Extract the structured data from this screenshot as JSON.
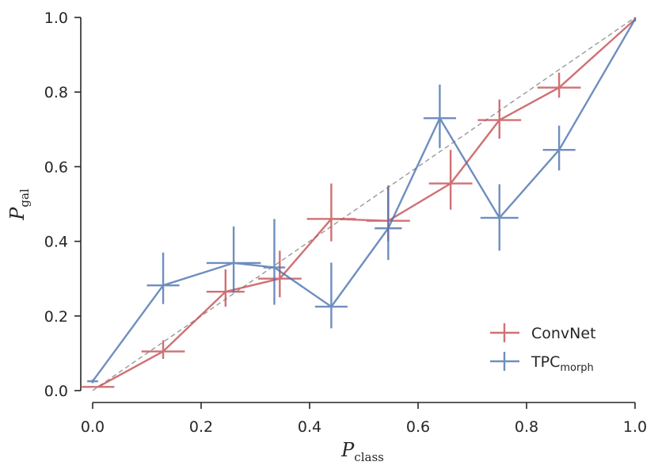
{
  "chart_data": {
    "type": "line",
    "title": "",
    "xlabel": {
      "main": "P",
      "sub": "class"
    },
    "ylabel": {
      "main": "P",
      "sub": "gal"
    },
    "xlim": [
      0.0,
      1.0
    ],
    "ylim": [
      0.0,
      1.0
    ],
    "xticks": [
      "0.0",
      "0.2",
      "0.4",
      "0.6",
      "0.8",
      "1.0"
    ],
    "yticks": [
      "0.0",
      "0.2",
      "0.4",
      "0.6",
      "0.8",
      "1.0"
    ],
    "xtick_values": [
      0.0,
      0.2,
      0.4,
      0.6,
      0.8,
      1.0
    ],
    "ytick_values": [
      0.0,
      0.2,
      0.4,
      0.6,
      0.8,
      1.0
    ],
    "grid": false,
    "legend_position": "bottom-right",
    "reference_line": {
      "from": [
        0,
        0
      ],
      "to": [
        1,
        1
      ],
      "style": "dashed",
      "color": "#999999"
    },
    "series": [
      {
        "name": "ConvNet",
        "name_sub": "",
        "color": "#c44e52",
        "points": [
          {
            "x": 0.01,
            "y": 0.01,
            "xerr": 0.03,
            "yerr_low": 0.0,
            "yerr_high": 0.0
          },
          {
            "x": 0.13,
            "y": 0.105,
            "xerr": 0.04,
            "yerr_low": 0.02,
            "yerr_high": 0.03
          },
          {
            "x": 0.245,
            "y": 0.265,
            "xerr": 0.035,
            "yerr_low": 0.04,
            "yerr_high": 0.06
          },
          {
            "x": 0.345,
            "y": 0.3,
            "xerr": 0.04,
            "yerr_low": 0.05,
            "yerr_high": 0.075
          },
          {
            "x": 0.44,
            "y": 0.46,
            "xerr": 0.045,
            "yerr_low": 0.06,
            "yerr_high": 0.095
          },
          {
            "x": 0.545,
            "y": 0.455,
            "xerr": 0.04,
            "yerr_low": 0.055,
            "yerr_high": 0.095
          },
          {
            "x": 0.66,
            "y": 0.555,
            "xerr": 0.04,
            "yerr_low": 0.07,
            "yerr_high": 0.09
          },
          {
            "x": 0.75,
            "y": 0.725,
            "xerr": 0.04,
            "yerr_low": 0.05,
            "yerr_high": 0.055
          },
          {
            "x": 0.86,
            "y": 0.812,
            "xerr": 0.04,
            "yerr_low": 0.027,
            "yerr_high": 0.04
          },
          {
            "x": 1.0,
            "y": 0.995,
            "xerr": 0.0,
            "yerr_low": 0.005,
            "yerr_high": 0.005
          }
        ]
      },
      {
        "name": "TPC",
        "name_sub": "morph",
        "color": "#4c72b0",
        "points": [
          {
            "x": 0.0,
            "y": 0.025,
            "xerr": 0.01,
            "yerr_low": 0.005,
            "yerr_high": 0.005
          },
          {
            "x": 0.13,
            "y": 0.282,
            "xerr": 0.03,
            "yerr_low": 0.05,
            "yerr_high": 0.088
          },
          {
            "x": 0.26,
            "y": 0.342,
            "xerr": 0.05,
            "yerr_low": 0.08,
            "yerr_high": 0.098
          },
          {
            "x": 0.335,
            "y": 0.33,
            "xerr": 0.02,
            "yerr_low": 0.1,
            "yerr_high": 0.13
          },
          {
            "x": 0.44,
            "y": 0.225,
            "xerr": 0.03,
            "yerr_low": 0.058,
            "yerr_high": 0.118
          },
          {
            "x": 0.545,
            "y": 0.435,
            "xerr": 0.025,
            "yerr_low": 0.085,
            "yerr_high": 0.11
          },
          {
            "x": 0.64,
            "y": 0.73,
            "xerr": 0.03,
            "yerr_low": 0.08,
            "yerr_high": 0.09
          },
          {
            "x": 0.75,
            "y": 0.463,
            "xerr": 0.035,
            "yerr_low": 0.088,
            "yerr_high": 0.09
          },
          {
            "x": 0.86,
            "y": 0.645,
            "xerr": 0.03,
            "yerr_low": 0.055,
            "yerr_high": 0.065
          },
          {
            "x": 1.0,
            "y": 0.995,
            "xerr": 0.0,
            "yerr_low": 0.005,
            "yerr_high": 0.005
          }
        ]
      }
    ]
  }
}
